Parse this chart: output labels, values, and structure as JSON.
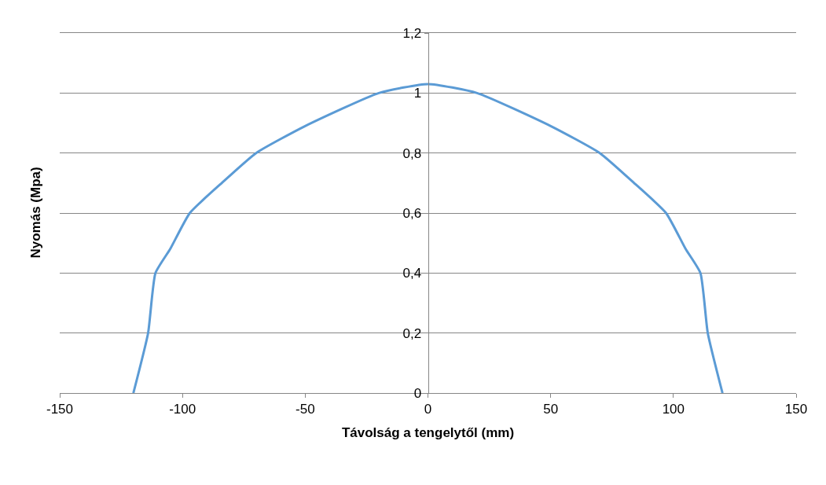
{
  "chart_data": {
    "type": "line",
    "xlabel": "Távolság a tengelytől (mm)",
    "ylabel": "Nyomás (Mpa)",
    "x": [
      -120,
      -114,
      -111,
      -105,
      -97,
      -84,
      -70,
      -50,
      -20,
      0,
      20,
      50,
      70,
      84,
      97,
      105,
      111,
      114,
      120
    ],
    "series": [
      {
        "color": "#5b9bd5",
        "values": [
          0,
          0.2,
          0.4,
          0.48,
          0.6,
          0.7,
          0.8,
          0.89,
          1.0,
          1.03,
          1.0,
          0.89,
          0.8,
          0.7,
          0.6,
          0.48,
          0.4,
          0.2,
          0
        ]
      }
    ],
    "xlim": [
      -150,
      150
    ],
    "xticks": [
      -150,
      -100,
      -50,
      0,
      50,
      100,
      150
    ],
    "ylim": [
      0,
      1.2
    ],
    "yticks": [
      0,
      {
        "value": 0.2,
        "label": "0,2"
      },
      {
        "value": 0.4,
        "label": "0,4"
      },
      {
        "value": 0.6,
        "label": "0,6"
      },
      {
        "value": 0.8,
        "label": "0,8"
      },
      1,
      {
        "value": 1.2,
        "label": "1,2"
      }
    ],
    "grid": "y",
    "marker": "none",
    "line_style": "solid"
  }
}
